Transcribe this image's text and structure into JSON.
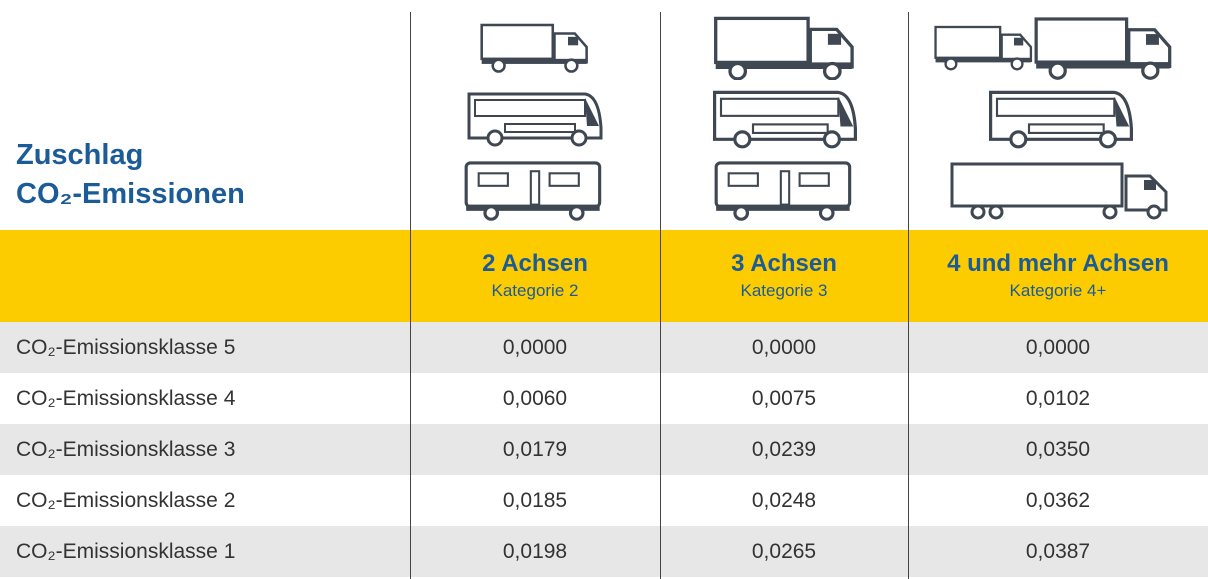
{
  "header": {
    "title": [
      "Zuschlag",
      "CO₂-Emissionen"
    ]
  },
  "table": {
    "columns": [
      {
        "title": "2 Achsen",
        "subtitle": "Kategorie 2"
      },
      {
        "title": "3 Achsen",
        "subtitle": "Kategorie 3"
      },
      {
        "title": "4 und mehr Achsen",
        "subtitle": "Kategorie 4+"
      }
    ],
    "rows": [
      [
        "CO₂-Emissionsklasse 5",
        "0,0000",
        "0,0000",
        "0,0000"
      ],
      [
        "CO₂-Emissionsklasse 4",
        "0,0060",
        "0,0075",
        "0,0102"
      ],
      [
        "CO₂-Emissionsklasse 3",
        "0,0179",
        "0,0239",
        "0,0350"
      ],
      [
        "CO₂-Emissionsklasse 2",
        "0,0185",
        "0,0248",
        "0,0362"
      ],
      [
        "CO₂-Emissionsklasse 1",
        "0,0198",
        "0,0265",
        "0,0387"
      ]
    ]
  }
}
